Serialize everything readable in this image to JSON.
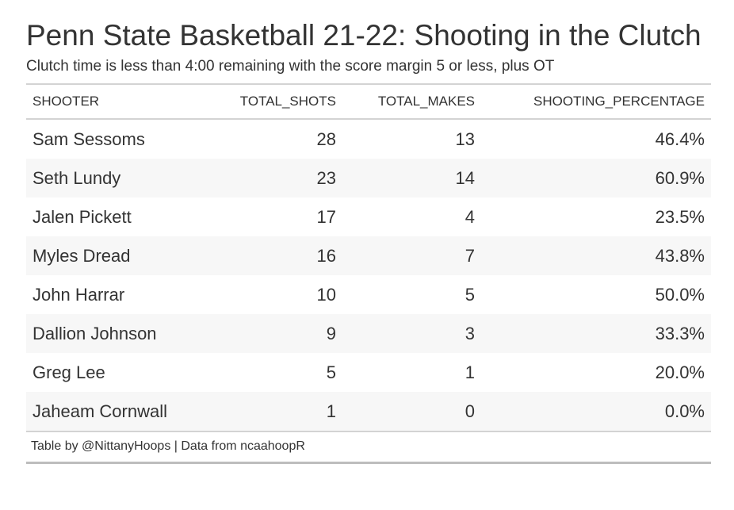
{
  "title": "Penn State Basketball 21-22: Shooting in the Clutch",
  "subtitle": "Clutch time is less than 4:00 remaining with the score margin 5 or less, plus OT",
  "source_note": "Table by @NittanyHoops | Data from ncaahoopR",
  "chart_data": {
    "type": "table",
    "title": "Penn State Basketball 21-22: Shooting in the Clutch",
    "columns": [
      "SHOOTER",
      "TOTAL_SHOTS",
      "TOTAL_MAKES",
      "SHOOTING_PERCENTAGE"
    ],
    "rows": [
      [
        "Sam Sessoms",
        "28",
        "13",
        "46.4%"
      ],
      [
        "Seth Lundy",
        "23",
        "14",
        "60.9%"
      ],
      [
        "Jalen Pickett",
        "17",
        "4",
        "23.5%"
      ],
      [
        "Myles Dread",
        "16",
        "7",
        "43.8%"
      ],
      [
        "John Harrar",
        "10",
        "5",
        "50.0%"
      ],
      [
        "Dallion Johnson",
        "9",
        "3",
        "33.3%"
      ],
      [
        "Greg Lee",
        "5",
        "1",
        "20.0%"
      ],
      [
        "Jaheam Cornwall",
        "1",
        "0",
        "0.0%"
      ]
    ]
  },
  "colors": {
    "text": "#333333",
    "rule": "#d3d3d3",
    "stripe": "#f7f7f7",
    "footer_rule": "#bdbdbd"
  }
}
